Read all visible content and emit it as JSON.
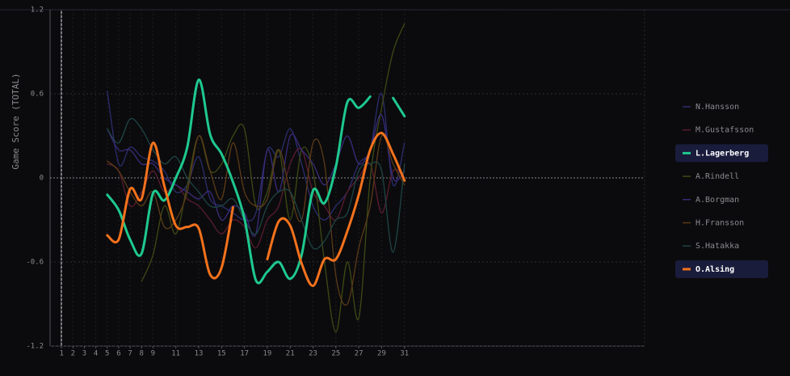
{
  "chart_data": {
    "type": "line",
    "y_label": "Game Score (TOTAL)",
    "x": [
      5,
      6,
      7,
      8,
      9,
      10,
      11,
      12,
      13,
      14,
      15,
      16,
      17,
      18,
      19,
      20,
      21,
      22,
      23,
      24,
      25,
      26,
      27,
      28,
      29,
      30,
      31
    ],
    "xlim": [
      0,
      52
    ],
    "xticks": [
      1,
      2,
      3,
      4,
      5,
      6,
      7,
      8,
      9,
      11,
      13,
      15,
      17,
      19,
      21,
      23,
      25,
      27,
      29,
      31
    ],
    "ylim": [
      -1.2,
      1.2
    ],
    "yticks": [
      -1.2,
      -0.6,
      0,
      0.6,
      1.2
    ],
    "grid": true,
    "series": [
      {
        "name": "N.Hansson",
        "color": "#2b2d6e",
        "highlight": false,
        "values": [
          0.62,
          0.1,
          0.22,
          0.15,
          0.12,
          0.05,
          -0.1,
          -0.05,
          0.15,
          -0.15,
          -0.2,
          -0.25,
          -0.3,
          -0.25,
          0.2,
          0.15,
          0.35,
          0.1,
          -0.2,
          -0.3,
          -0.2,
          -0.1,
          0.1,
          0.2,
          0.6,
          -0.05,
          0.25
        ]
      },
      {
        "name": "M.Gustafsson",
        "color": "#5a1c2e",
        "highlight": false,
        "values": [
          0.1,
          0.05,
          -0.2,
          -0.1,
          0.05,
          -0.1,
          -0.05,
          -0.15,
          -0.2,
          -0.3,
          -0.4,
          -0.3,
          -0.35,
          -0.5,
          -0.3,
          -0.2,
          0.1,
          0.2,
          -0.1,
          -0.2,
          -0.3,
          -0.1,
          0.0,
          0.1,
          -0.25,
          0.05,
          0.0
        ]
      },
      {
        "name": "L.Lagerberg",
        "color": "#1ec98e",
        "highlight": true,
        "values": [
          -0.12,
          -0.23,
          -0.44,
          -0.54,
          -0.11,
          -0.16,
          0.0,
          0.22,
          0.7,
          0.31,
          0.17,
          -0.03,
          -0.29,
          -0.73,
          -0.67,
          -0.6,
          -0.72,
          -0.55,
          -0.09,
          -0.18,
          0.08,
          0.54,
          0.5,
          0.58,
          null,
          0.57,
          0.44
        ]
      },
      {
        "name": "A.Rindell",
        "color": "#3d4a14",
        "highlight": false,
        "values": [
          null,
          null,
          null,
          -0.74,
          -0.55,
          -0.2,
          -0.4,
          -0.05,
          0.3,
          0.05,
          0.1,
          0.3,
          0.35,
          -0.2,
          -0.1,
          0.2,
          -0.3,
          0.2,
          0.05,
          -0.6,
          -1.1,
          -0.6,
          -1.0,
          0.0,
          0.5,
          0.9,
          1.1
        ]
      },
      {
        "name": "A.Borgman",
        "color": "#3a2b7c",
        "highlight": false,
        "values": [
          0.35,
          0.2,
          0.2,
          0.1,
          0.1,
          0.0,
          -0.05,
          -0.1,
          -0.15,
          -0.1,
          -0.3,
          -0.2,
          -0.25,
          -0.4,
          0.2,
          -0.1,
          0.3,
          0.2,
          0.1,
          -0.05,
          0.1,
          0.3,
          0.1,
          0.2,
          0.45,
          0.0,
          0.05
        ]
      },
      {
        "name": "H.Fransson",
        "color": "#5c3a18",
        "highlight": false,
        "values": [
          0.12,
          0.05,
          -0.1,
          -0.2,
          -0.1,
          -0.35,
          -0.3,
          -0.1,
          0.3,
          0.05,
          -0.15,
          0.25,
          -0.1,
          -0.2,
          -0.15,
          0.2,
          -0.1,
          -0.3,
          0.25,
          0.1,
          -0.7,
          -0.9,
          -0.5,
          -0.2,
          0.3,
          0.1,
          -0.05
        ]
      },
      {
        "name": "S.Hatakka",
        "color": "#1f4444",
        "highlight": false,
        "values": [
          0.35,
          0.25,
          0.42,
          0.35,
          0.2,
          0.1,
          0.15,
          0.0,
          -0.1,
          -0.2,
          -0.2,
          -0.15,
          -0.3,
          -0.4,
          -0.2,
          -0.1,
          -0.1,
          -0.3,
          -0.5,
          -0.45,
          -0.3,
          -0.25,
          0.05,
          0.1,
          0.05,
          -0.53,
          0.1
        ]
      },
      {
        "name": "O.Alsing",
        "color": "#f5721c",
        "highlight": true,
        "values": [
          -0.41,
          -0.44,
          -0.08,
          -0.15,
          0.25,
          -0.06,
          -0.34,
          -0.35,
          -0.36,
          -0.69,
          -0.64,
          -0.21,
          null,
          null,
          -0.58,
          -0.31,
          -0.34,
          -0.61,
          -0.77,
          -0.58,
          -0.58,
          -0.38,
          -0.12,
          0.2,
          0.32,
          0.17,
          -0.02
        ]
      }
    ]
  }
}
